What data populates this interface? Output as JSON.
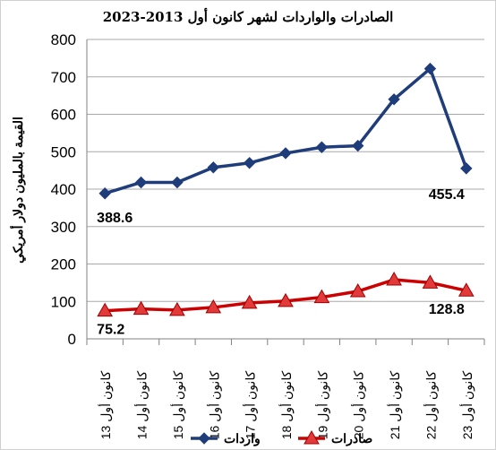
{
  "chart_data": {
    "type": "line",
    "title": "الصادرات والواردات لشهر كانون أول 2013-2023",
    "ylabel": "القيمة بالمليون دولار أمريكي",
    "xlabel": "",
    "categories": [
      "كانون أول 13",
      "كانون أول 14",
      "كانون أول 15",
      "كانون أول 16",
      "كانون أول 17",
      "كانون أول 18",
      "كانون أول 19",
      "كانون أول 20",
      "كانون أول 21",
      "كانون أول 22",
      "كانون أول 23"
    ],
    "ylim": [
      0,
      800
    ],
    "yticks": [
      "0",
      "100",
      "200",
      "300",
      "400",
      "500",
      "600",
      "700",
      "800"
    ],
    "grid": true,
    "legend_position": "bottom",
    "series": [
      {
        "name": "واردات",
        "color": "#1f3d7a",
        "marker": "diamond",
        "values": [
          388.6,
          418,
          418,
          458,
          470,
          496,
          512,
          516,
          640,
          722,
          455.4
        ]
      },
      {
        "name": "صادرات",
        "color": "#cc0000",
        "marker": "triangle",
        "values": [
          75.2,
          80,
          77,
          84,
          96,
          101,
          111,
          127,
          158,
          150,
          128.8
        ]
      }
    ],
    "annotations": [
      {
        "series": 0,
        "index": 0,
        "text": "388.6"
      },
      {
        "series": 0,
        "index": 10,
        "text": "455.4"
      },
      {
        "series": 1,
        "index": 0,
        "text": "75.2"
      },
      {
        "series": 1,
        "index": 10,
        "text": "128.8"
      }
    ]
  }
}
